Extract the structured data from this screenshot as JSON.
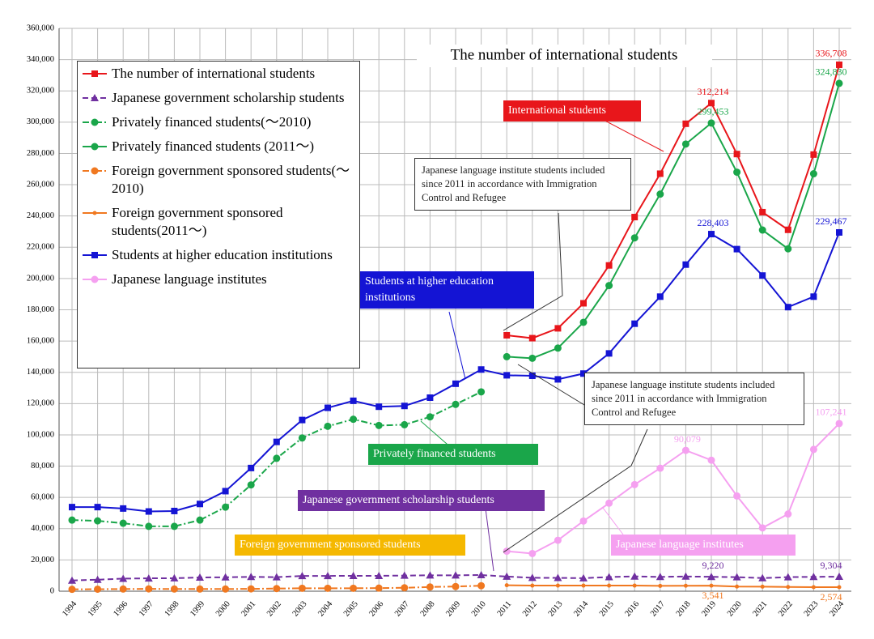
{
  "chart_data": {
    "type": "line",
    "title": "The number of international students",
    "categories": [
      "1994",
      "1995",
      "1996",
      "1997",
      "1998",
      "1999",
      "2000",
      "2001",
      "2002",
      "2003",
      "2004",
      "2005",
      "2006",
      "2007",
      "2008",
      "2009",
      "2010",
      "2011",
      "2012",
      "2013",
      "2014",
      "2015",
      "2016",
      "2017",
      "2018",
      "2019",
      "2020",
      "2021",
      "2022",
      "2023",
      "2024"
    ],
    "ylim": [
      0,
      360000
    ],
    "yticks": [
      {
        "value": 0,
        "label": "0"
      },
      {
        "value": 20000,
        "label": "20,000"
      },
      {
        "value": 40000,
        "label": "40,000"
      },
      {
        "value": 60000,
        "label": "60,000"
      },
      {
        "value": 80000,
        "label": "80,000"
      },
      {
        "value": 100000,
        "label": "100,000"
      },
      {
        "value": 120000,
        "label": "120,000"
      },
      {
        "value": 140000,
        "label": "140,000"
      },
      {
        "value": 160000,
        "label": "160,000"
      },
      {
        "value": 180000,
        "label": "180,000"
      },
      {
        "value": 200000,
        "label": "200,000"
      },
      {
        "value": 220000,
        "label": "220,000"
      },
      {
        "value": 240000,
        "label": "240,000"
      },
      {
        "value": 260000,
        "label": "260,000"
      },
      {
        "value": 280000,
        "label": "280,000"
      },
      {
        "value": 300000,
        "label": "300,000"
      },
      {
        "value": 320000,
        "label": "320,000"
      },
      {
        "value": 340000,
        "label": "340,000"
      },
      {
        "value": 360000,
        "label": "360,000"
      }
    ],
    "grid": true,
    "series": [
      {
        "name": "The number of international students",
        "color": "#e8161b",
        "marker": "square",
        "line_style": "solid",
        "values": [
          null,
          null,
          null,
          null,
          null,
          null,
          null,
          null,
          null,
          null,
          null,
          null,
          null,
          null,
          null,
          null,
          null,
          163697,
          161848,
          168145,
          184155,
          208379,
          239287,
          267042,
          298980,
          312214,
          279597,
          242444,
          231146,
          279274,
          336708
        ],
        "value_labels": [
          null,
          null,
          null,
          null,
          null,
          null,
          null,
          null,
          null,
          null,
          null,
          null,
          null,
          null,
          null,
          null,
          null,
          null,
          null,
          null,
          null,
          null,
          null,
          null,
          null,
          "312,214",
          null,
          null,
          null,
          null,
          "336,708"
        ]
      },
      {
        "name": "Japanese government scholarship students",
        "color": "#7030a0",
        "marker": "triangle",
        "line_style": "dashed",
        "values": [
          6880,
          7371,
          8051,
          8250,
          8323,
          8774,
          8930,
          9173,
          9009,
          9746,
          9804,
          9859,
          9869,
          10020,
          10168,
          10168,
          10349,
          9396,
          8588,
          8529,
          8351,
          9082,
          9481,
          9166,
          9423,
          9220,
          9000,
          8400,
          9000,
          9200,
          9304
        ],
        "value_labels": [
          null,
          null,
          null,
          null,
          null,
          null,
          null,
          null,
          null,
          null,
          null,
          null,
          null,
          null,
          null,
          null,
          null,
          null,
          null,
          null,
          null,
          null,
          null,
          null,
          null,
          "9,220",
          null,
          null,
          null,
          null,
          "9,304"
        ]
      },
      {
        "name": "Privately financed students(～2010)",
        "color": "#1aa64a",
        "marker": "circle",
        "line_style": "dashdot",
        "values": [
          45500,
          45000,
          43500,
          41500,
          41500,
          45500,
          53800,
          68000,
          85000,
          98000,
          105500,
          110000,
          106000,
          106500,
          111500,
          119500,
          127500,
          null,
          null,
          null,
          null,
          null,
          null,
          null,
          null,
          null,
          null,
          null,
          null,
          null,
          null
        ]
      },
      {
        "name": "Privately financed students (2011～)",
        "color": "#1aa64a",
        "marker": "circle",
        "line_style": "solid",
        "values": [
          null,
          null,
          null,
          null,
          null,
          null,
          null,
          null,
          null,
          null,
          null,
          null,
          null,
          null,
          null,
          null,
          null,
          150000,
          149000,
          155500,
          172000,
          195500,
          226000,
          254000,
          286000,
          299453,
          268000,
          231000,
          219000,
          267000,
          324830
        ],
        "value_labels": [
          null,
          null,
          null,
          null,
          null,
          null,
          null,
          null,
          null,
          null,
          null,
          null,
          null,
          null,
          null,
          null,
          null,
          null,
          null,
          null,
          null,
          null,
          null,
          null,
          null,
          "299,453",
          null,
          null,
          null,
          null,
          "324,830"
        ]
      },
      {
        "name": "Foreign government sponsored students(～2010)",
        "color": "#f07820",
        "marker": "circle",
        "line_style": "dashdot",
        "values": [
          1200,
          1300,
          1400,
          1500,
          1400,
          1400,
          1400,
          1500,
          1700,
          1900,
          1900,
          1900,
          2000,
          2200,
          2700,
          3000,
          3500,
          null,
          null,
          null,
          null,
          null,
          null,
          null,
          null,
          null,
          null,
          null,
          null,
          null,
          null
        ]
      },
      {
        "name": "Foreign government sponsored students(2011～)",
        "color": "#f07820",
        "marker": "dot",
        "line_style": "solid",
        "values": [
          null,
          null,
          null,
          null,
          null,
          null,
          null,
          null,
          null,
          null,
          null,
          null,
          null,
          null,
          null,
          null,
          null,
          3800,
          3600,
          3600,
          3600,
          3600,
          3600,
          3400,
          3500,
          3541,
          3000,
          2900,
          2700,
          2600,
          2574
        ],
        "value_labels": [
          null,
          null,
          null,
          null,
          null,
          null,
          null,
          null,
          null,
          null,
          null,
          null,
          null,
          null,
          null,
          null,
          null,
          null,
          null,
          null,
          null,
          null,
          null,
          null,
          null,
          "3,541",
          null,
          null,
          null,
          null,
          "2,574"
        ]
      },
      {
        "name": "Students at higher education institutions",
        "color": "#1414d4",
        "marker": "square",
        "line_style": "solid",
        "values": [
          53800,
          53800,
          52900,
          51000,
          51300,
          55800,
          64000,
          78800,
          95500,
          109500,
          117300,
          121800,
          118000,
          118500,
          123800,
          132700,
          141800,
          138100,
          137800,
          135500,
          139200,
          152100,
          171100,
          188400,
          208900,
          228403,
          218800,
          201900,
          181700,
          188400,
          229467
        ],
        "value_labels": [
          null,
          null,
          null,
          null,
          null,
          null,
          null,
          null,
          null,
          null,
          null,
          null,
          null,
          null,
          null,
          null,
          null,
          null,
          null,
          null,
          null,
          null,
          null,
          null,
          null,
          "228,403",
          null,
          null,
          null,
          null,
          "229,467"
        ]
      },
      {
        "name": "Japanese language institutes",
        "color": "#f5a0f0",
        "marker": "circle",
        "line_style": "solid",
        "values": [
          null,
          null,
          null,
          null,
          null,
          null,
          null,
          null,
          null,
          null,
          null,
          null,
          null,
          null,
          null,
          null,
          null,
          25600,
          24100,
          32600,
          44900,
          56300,
          68200,
          78700,
          90079,
          83800,
          60900,
          40500,
          49400,
          90700,
          107241
        ],
        "value_labels": [
          null,
          null,
          null,
          null,
          null,
          null,
          null,
          null,
          null,
          null,
          null,
          null,
          null,
          null,
          null,
          null,
          null,
          null,
          null,
          null,
          null,
          null,
          null,
          null,
          "90,079",
          null,
          null,
          null,
          null,
          null,
          "107,241"
        ]
      }
    ],
    "annotations": [
      {
        "text": "International students",
        "color": "#e8161b"
      },
      {
        "text": "Students at higher education institutions",
        "color": "#1414d4"
      },
      {
        "text": "Privately financed students",
        "color": "#1aa64a"
      },
      {
        "text": "Japanese government scholarship students",
        "color": "#7030a0"
      },
      {
        "text": "Foreign government sponsored students",
        "color": "#f5b800"
      },
      {
        "text": "Japanese language institutes",
        "color": "#f5a0f0"
      },
      {
        "text": "Japanese language institute students included since 2011 in accordance with Immigration Control and Refugee",
        "color": "#ffffff"
      },
      {
        "text": "Japanese language institute students included since 2011 in accordance with Immigration Control and Refugee",
        "color": "#ffffff"
      }
    ]
  }
}
